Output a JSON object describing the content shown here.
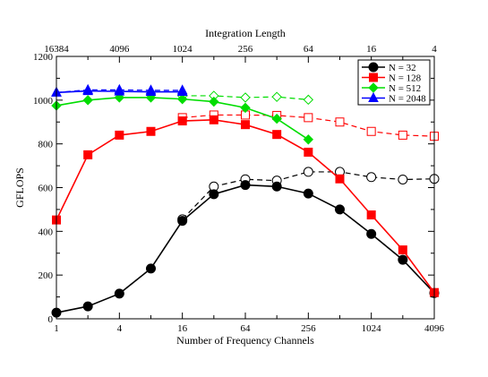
{
  "chart_data": {
    "type": "line",
    "xlabel": "Number of Frequency Channels",
    "x2label": "Integration Length",
    "ylabel": "GFLOPS",
    "ylim": [
      0,
      1200
    ],
    "x_scale": "log2",
    "xlim": [
      1,
      4096
    ],
    "yticks": [
      0,
      200,
      400,
      600,
      800,
      1000,
      1200
    ],
    "xticks": [
      1,
      4,
      16,
      64,
      256,
      1024,
      4096
    ],
    "x2ticks": [
      "16384",
      "4096",
      "1024",
      "256",
      "64",
      "16",
      "4"
    ],
    "grid": false,
    "legend_position": "top-right",
    "series": [
      {
        "name": "N = 32",
        "color": "#000000",
        "marker": "circle",
        "x": [
          1,
          2,
          4,
          8,
          16,
          32,
          64,
          128,
          256,
          512,
          1024,
          2048,
          4096
        ],
        "solid": [
          28,
          57,
          115,
          230,
          448,
          570,
          612,
          605,
          573,
          500,
          388,
          270,
          118
        ],
        "dashed": [
          null,
          null,
          null,
          null,
          455,
          605,
          638,
          632,
          672,
          672,
          648,
          637,
          640
        ]
      },
      {
        "name": "N = 128",
        "color": "#ff0000",
        "marker": "square",
        "x": [
          1,
          2,
          4,
          8,
          16,
          32,
          64,
          128,
          256,
          512,
          1024,
          2048,
          4096
        ],
        "solid": [
          452,
          750,
          840,
          857,
          905,
          910,
          888,
          843,
          762,
          640,
          475,
          315,
          120
        ],
        "dashed": [
          null,
          null,
          null,
          null,
          920,
          932,
          932,
          930,
          920,
          900,
          857,
          840,
          835
        ]
      },
      {
        "name": "N = 512",
        "color": "#00dd00",
        "marker": "diamond",
        "x": [
          1,
          2,
          4,
          8,
          16,
          32,
          64,
          128,
          256
        ],
        "solid": [
          975,
          1000,
          1012,
          1012,
          1005,
          993,
          965,
          915,
          820
        ],
        "dashed": [
          null,
          null,
          null,
          null,
          1020,
          1020,
          1012,
          1015,
          1002
        ]
      },
      {
        "name": "N = 2048",
        "color": "#0000ff",
        "marker": "triangle",
        "x": [
          1,
          2,
          4,
          8,
          16
        ],
        "solid": [
          1035,
          1042,
          1040,
          1038,
          1038
        ],
        "dashed": [
          1035,
          1047,
          1047,
          1045,
          1045
        ]
      }
    ]
  }
}
